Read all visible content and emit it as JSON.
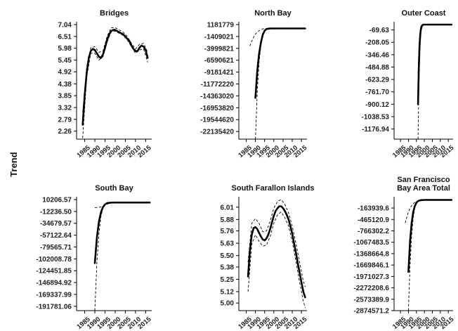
{
  "y_axis_title": "Trend",
  "chart_data": [
    {
      "type": "line",
      "title": "Bridges",
      "x_ticks": [
        1985,
        1990,
        1995,
        2000,
        2005,
        2010,
        2015
      ],
      "x_range": [
        1981,
        2018
      ],
      "y_ticks": [
        2.26,
        2.79,
        3.32,
        3.85,
        4.38,
        4.92,
        5.45,
        5.98,
        6.51,
        7.04
      ],
      "y_tick_labels": [
        "2.26",
        "2.79",
        "3.32",
        "3.85",
        "4.38",
        "4.92",
        "5.45",
        "5.98",
        "6.51",
        "7.04"
      ],
      "y_range": [
        1.9,
        7.04
      ],
      "series": [
        {
          "x": [
            1984,
            1985,
            1986,
            1987,
            1988,
            1989,
            1990,
            1991,
            1992,
            1993,
            1994,
            1995,
            1996,
            1997,
            1998,
            1999,
            2000,
            2001,
            2002,
            2003,
            2004,
            2005,
            2006,
            2007,
            2008,
            2009,
            2010,
            2011,
            2012,
            2013,
            2014,
            2015,
            2016
          ],
          "y": [
            2.55,
            3.9,
            4.9,
            5.55,
            5.85,
            5.95,
            5.9,
            5.75,
            5.6,
            5.55,
            5.7,
            6.0,
            6.35,
            6.6,
            6.75,
            6.8,
            6.8,
            6.75,
            6.7,
            6.65,
            6.6,
            6.5,
            6.4,
            6.3,
            6.1,
            5.95,
            5.85,
            5.85,
            6.0,
            6.1,
            6.05,
            5.9,
            5.55
          ]
        },
        {
          "x": [
            1984,
            1986,
            1988,
            1990,
            1992,
            1994,
            1996,
            1998,
            2000,
            2002,
            2004,
            2006,
            2008,
            2010,
            2012,
            2014,
            2016
          ],
          "y": [
            1.95,
            4.7,
            5.75,
            5.75,
            5.45,
            5.6,
            6.25,
            6.7,
            6.75,
            6.65,
            6.55,
            6.35,
            6.05,
            5.75,
            5.9,
            5.95,
            5.35
          ]
        },
        {
          "x": [
            1984,
            1986,
            1988,
            1990,
            1992,
            1994,
            1996,
            1998,
            2000,
            2002,
            2004,
            2006,
            2008,
            2010,
            2012,
            2014,
            2016
          ],
          "y": [
            3.1,
            5.15,
            6.0,
            6.05,
            5.8,
            5.85,
            6.5,
            6.9,
            6.9,
            6.8,
            6.7,
            6.5,
            6.2,
            5.95,
            6.15,
            6.2,
            5.8
          ]
        }
      ]
    },
    {
      "type": "line",
      "title": "North Bay",
      "x_ticks": [
        1985,
        1990,
        1995,
        2000,
        2005,
        2010,
        2015
      ],
      "x_range": [
        1981,
        2018
      ],
      "y_ticks": [
        -22135420,
        -19544620,
        -16953820,
        -14363020,
        -11772220,
        -9181421,
        -6590621,
        -3999821,
        -1409021,
        1181779
      ],
      "y_tick_labels": [
        "-22135420",
        "-19544620",
        "-16953820",
        "-14363020",
        "-11772220",
        "-9181421",
        "-6590621",
        "-3999821",
        "-1409021",
        "1181779"
      ],
      "y_range": [
        -23800000,
        1181779
      ],
      "series": [
        {
          "x": [
            1990,
            1991,
            1992,
            1993,
            1994,
            1995,
            1996,
            1997,
            1998,
            1999,
            2000,
            2005,
            2010,
            2017
          ],
          "y": [
            -14800000,
            -9000000,
            -5200000,
            -2700000,
            -1000000,
            -150000,
            200000,
            300000,
            330000,
            340000,
            340000,
            340000,
            340000,
            340000
          ]
        },
        {
          "x": [
            1990,
            1991,
            1992,
            1993,
            1994,
            1995,
            1996,
            1998,
            2000,
            2017
          ],
          "y": [
            -23800000,
            -13500000,
            -7000000,
            -3300000,
            -1300000,
            -300000,
            200000,
            330000,
            340000,
            340000
          ]
        },
        {
          "x": [
            1987,
            1988,
            1989,
            1990,
            1991,
            1992,
            1993,
            1994,
            1996,
            1998,
            2017
          ],
          "y": [
            -3500000,
            -2400000,
            -1600000,
            -900000,
            -450000,
            -150000,
            100000,
            250000,
            330000,
            340000,
            340000
          ]
        }
      ]
    },
    {
      "type": "line",
      "title": "Outer Coast",
      "x_ticks": [
        1985,
        1990,
        1995,
        2000,
        2005,
        2010,
        2015
      ],
      "x_range": [
        1981,
        2018
      ],
      "y_ticks": [
        -1176.94,
        -1038.53,
        -900.12,
        -761.7,
        -623.29,
        -484.88,
        -346.46,
        -208.05,
        -69.63
      ],
      "y_tick_labels": [
        "-1176.94",
        "-1038.53",
        "-900.12",
        "-761.70",
        "-623.29",
        "-484.88",
        "-346.46",
        "-208.05",
        "-69.63"
      ],
      "y_range": [
        -1290,
        -10
      ],
      "series": [
        {
          "x": [
            1996,
            1996.5,
            1997,
            1997.5,
            1998,
            1999,
            2000,
            2005,
            2017
          ],
          "y": [
            -900,
            -500,
            -240,
            -100,
            -40,
            -12,
            -10,
            -10,
            -10
          ]
        },
        {
          "x": [
            1996,
            1996.5,
            1997,
            1997.5,
            1998,
            1999,
            2000,
            2017
          ],
          "y": [
            -1290,
            -750,
            -380,
            -170,
            -70,
            -20,
            -10,
            -10
          ]
        },
        {
          "x": [
            1996,
            1996.5,
            1997,
            1997.5,
            1998,
            1999,
            2000,
            2017
          ],
          "y": [
            -560,
            -290,
            -130,
            -50,
            -20,
            -10,
            -10,
            -10
          ]
        }
      ]
    },
    {
      "type": "line",
      "title": "South Bay",
      "x_ticks": [
        1985,
        1990,
        1995,
        2000,
        2005,
        2010,
        2015
      ],
      "x_range": [
        1981,
        2018
      ],
      "y_ticks": [
        -191781.06,
        -169337.99,
        -146894.92,
        -124451.85,
        -102008.78,
        -79565.71,
        -57122.64,
        -34679.57,
        -12236.5,
        10206.57
      ],
      "y_tick_labels": [
        "-191781.06",
        "-169337.99",
        "-146894.92",
        "-124451.85",
        "-102008.78",
        "-79565.71",
        "-57122.64",
        "-34679.57",
        "-12236.50",
        "10206.57"
      ],
      "y_range": [
        -200000,
        10206.57
      ],
      "series": [
        {
          "x": [
            1990,
            1991,
            1992,
            1993,
            1994,
            1995,
            1996,
            1998,
            2000,
            2005,
            2010,
            2017
          ],
          "y": [
            -110000,
            -62000,
            -32000,
            -14000,
            -4000,
            1000,
            3500,
            4500,
            4600,
            4600,
            4600,
            4600
          ]
        },
        {
          "x": [
            1990,
            1991,
            1992,
            1993,
            1994,
            1995,
            1996,
            1998,
            2000,
            2017
          ],
          "y": [
            -200000,
            -110000,
            -55000,
            -22000,
            -6000,
            800,
            3500,
            4500,
            4600,
            4600
          ]
        },
        {
          "x": [
            1990,
            1992,
            1994,
            1996,
            1998,
            2000,
            2017
          ],
          "y": [
            -5000,
            -4500,
            -2500,
            1500,
            4000,
            4600,
            4600
          ]
        }
      ]
    },
    {
      "type": "line",
      "title": "South Farallon Islands",
      "x_ticks": [
        1985,
        1990,
        1995,
        2000,
        2005,
        2010,
        2015
      ],
      "x_range": [
        1981,
        2018
      ],
      "y_ticks": [
        5.0,
        5.12,
        5.25,
        5.38,
        5.5,
        5.63,
        5.76,
        5.88,
        6.01
      ],
      "y_tick_labels": [
        "5.00",
        "5.12",
        "5.25",
        "5.38",
        "5.50",
        "5.63",
        "5.76",
        "5.88",
        "6.01"
      ],
      "y_range": [
        4.92,
        6.09
      ],
      "series": [
        {
          "x": [
            1986,
            1987,
            1988,
            1989,
            1990,
            1991,
            1992,
            1993,
            1994,
            1995,
            1996,
            1997,
            1998,
            1999,
            2000,
            2001,
            2002,
            2003,
            2004,
            2005,
            2006,
            2007,
            2008,
            2009,
            2010,
            2011,
            2012,
            2013,
            2014,
            2015,
            2016,
            2017
          ],
          "y": [
            5.28,
            5.55,
            5.72,
            5.79,
            5.8,
            5.78,
            5.74,
            5.7,
            5.67,
            5.66,
            5.68,
            5.72,
            5.78,
            5.85,
            5.92,
            5.97,
            6.0,
            6.02,
            6.02,
            6.0,
            5.97,
            5.93,
            5.88,
            5.81,
            5.73,
            5.63,
            5.53,
            5.42,
            5.32,
            5.22,
            5.12,
            5.06
          ]
        },
        {
          "x": [
            1986,
            1988,
            1990,
            1992,
            1994,
            1996,
            1998,
            2000,
            2002,
            2004,
            2006,
            2008,
            2010,
            2012,
            2014,
            2016,
            2017
          ],
          "y": [
            5.12,
            5.62,
            5.72,
            5.65,
            5.6,
            5.61,
            5.7,
            5.84,
            5.93,
            5.96,
            5.9,
            5.81,
            5.65,
            5.44,
            5.22,
            5.02,
            4.95
          ]
        },
        {
          "x": [
            1986,
            1988,
            1990,
            1992,
            1994,
            1996,
            1998,
            2000,
            2002,
            2004,
            2006,
            2008,
            2010,
            2012,
            2014,
            2016,
            2017
          ],
          "y": [
            5.43,
            5.84,
            5.89,
            5.84,
            5.75,
            5.76,
            5.86,
            6.0,
            6.07,
            6.09,
            6.04,
            5.95,
            5.81,
            5.63,
            5.43,
            5.23,
            5.17
          ]
        }
      ]
    },
    {
      "type": "line",
      "title": "San Francisco\nBay Area Total",
      "x_ticks": [
        1985,
        1990,
        1995,
        2000,
        2005,
        2010,
        2015
      ],
      "x_range": [
        1981,
        2018
      ],
      "y_ticks": [
        -2874571.2,
        -2573389.9,
        -2272208.6,
        -1971027.3,
        -1669846.1,
        -1368664.8,
        -1067483.5,
        -766302.2,
        -465120.9,
        -163939.6
      ],
      "y_tick_labels": [
        "-2874571.2",
        "-2573389.9",
        "-2272208.6",
        "-1971027.3",
        "-1669846.1",
        "-1368664.8",
        "-1067483.5",
        "-766302.2",
        "-465120.9",
        "-163939.6"
      ],
      "y_range": [
        -2874571.2,
        60000
      ],
      "series": [
        {
          "x": [
            1990,
            1991,
            1992,
            1993,
            1994,
            1995,
            1996,
            1997,
            1998,
            2000,
            2005,
            2010,
            2017
          ],
          "y": [
            -1850000,
            -1050000,
            -560000,
            -270000,
            -110000,
            -20000,
            20000,
            38000,
            45000,
            50000,
            50000,
            50000,
            50000
          ]
        },
        {
          "x": [
            1990,
            1991,
            1992,
            1993,
            1994,
            1995,
            1996,
            1998,
            2000,
            2017
          ],
          "y": [
            -2874571,
            -1700000,
            -900000,
            -420000,
            -160000,
            -40000,
            15000,
            45000,
            50000,
            50000
          ]
        },
        {
          "x": [
            1988,
            1989,
            1990,
            1991,
            1992,
            1993,
            1994,
            1996,
            1998,
            2017
          ],
          "y": [
            -560000,
            -400000,
            -270000,
            -170000,
            -100000,
            -50000,
            -15000,
            30000,
            48000,
            50000
          ]
        }
      ]
    }
  ]
}
